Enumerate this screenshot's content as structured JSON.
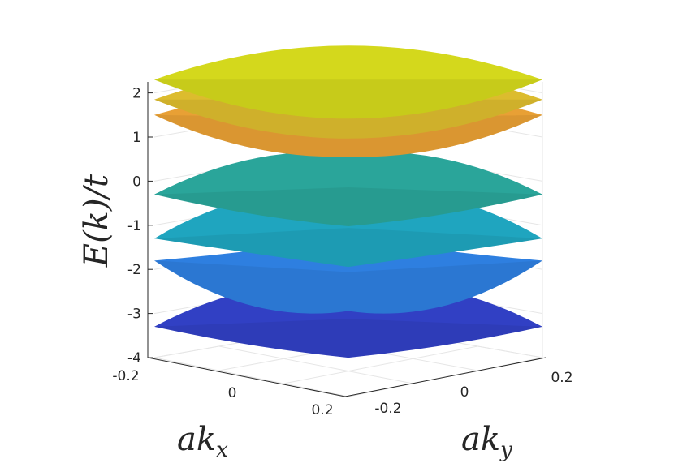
{
  "chart_data": {
    "type": "surface",
    "title": "",
    "xlabel": "ak_x",
    "ylabel": "ak_y",
    "zlabel": "E(k)/t",
    "xlim": [
      -0.25,
      0.25
    ],
    "ylim": [
      -0.25,
      0.25
    ],
    "zlim": [
      -4,
      2.25
    ],
    "x_ticks": [
      "-0.2",
      "0",
      "0.2"
    ],
    "y_ticks": [
      "-0.2",
      "0",
      "0.2"
    ],
    "z_ticks": [
      "2",
      "1",
      "0",
      "-1",
      "-2",
      "-3",
      "-4"
    ],
    "grid": true,
    "colormap": "parula",
    "series": [
      {
        "corner_energy": 2.3,
        "center_energy": 2.3,
        "color": "#d4d81c"
      },
      {
        "corner_energy": 1.85,
        "center_energy": 1.85,
        "color": "#dcbc2e"
      },
      {
        "corner_energy": 1.5,
        "center_energy": 1.35,
        "color": "#e8a035"
      },
      {
        "corner_energy": -0.3,
        "center_energy": 0.1,
        "color": "#2aa59a"
      },
      {
        "corner_energy": -1.3,
        "center_energy": -0.7,
        "color": "#1fa5bf"
      },
      {
        "corner_energy": -1.8,
        "center_energy": -2.45,
        "color": "#2e7fe0"
      },
      {
        "corner_energy": -3.3,
        "center_energy": -2.85,
        "color": "#3140c4"
      }
    ]
  },
  "labels": {
    "z_axis": "E(k)/t",
    "x_axis_main": "ak",
    "x_axis_sub": "x",
    "y_axis_main": "ak",
    "y_axis_sub": "y"
  }
}
